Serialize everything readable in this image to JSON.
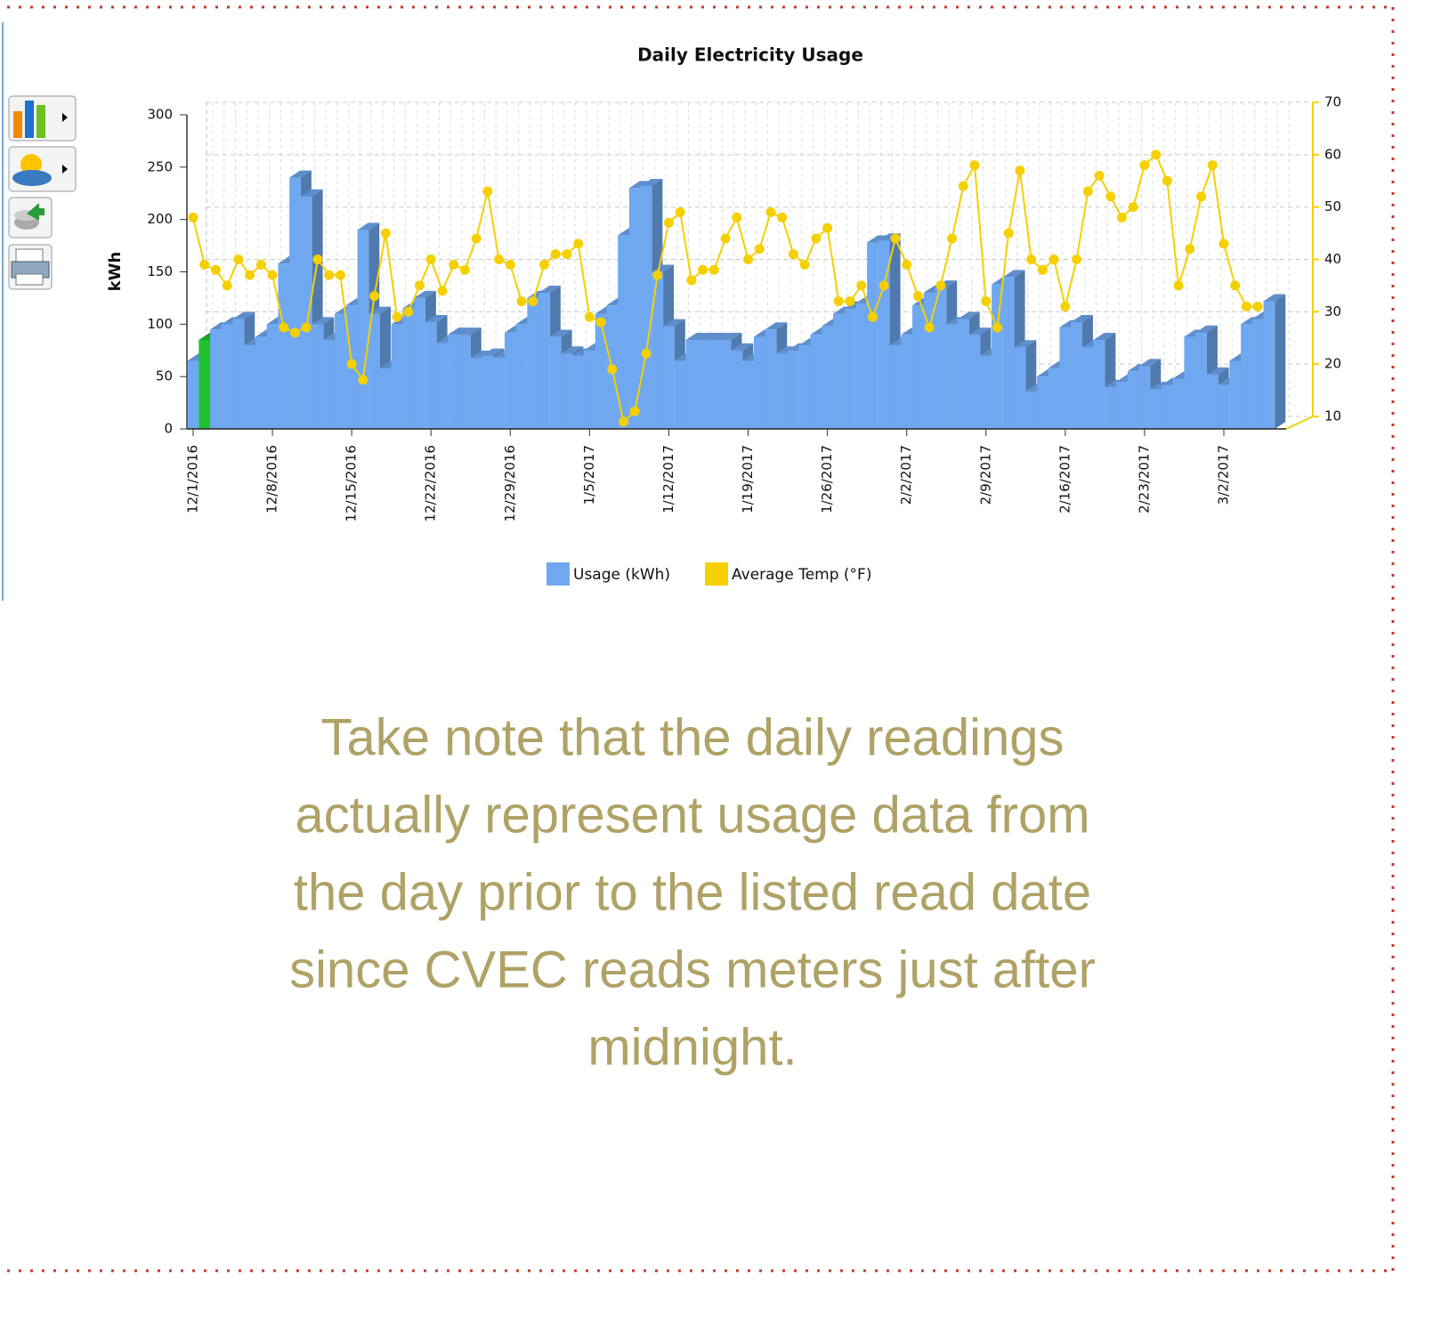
{
  "chart_data": {
    "type": "bar3d_line",
    "title": "Daily Electricity Usage",
    "ylabel": "kWh",
    "categories": [
      "12/1/2016",
      null,
      null,
      null,
      null,
      null,
      null,
      "12/8/2016",
      null,
      null,
      null,
      null,
      null,
      null,
      "12/15/2016",
      null,
      null,
      null,
      null,
      null,
      null,
      "12/22/2016",
      null,
      null,
      null,
      null,
      null,
      null,
      "12/29/2016",
      null,
      null,
      null,
      null,
      null,
      null,
      "1/5/2017",
      null,
      null,
      null,
      null,
      null,
      null,
      "1/12/2017",
      null,
      null,
      null,
      null,
      null,
      null,
      "1/19/2017",
      null,
      null,
      null,
      null,
      null,
      null,
      "1/26/2017",
      null,
      null,
      null,
      null,
      null,
      null,
      "2/2/2017",
      null,
      null,
      null,
      null,
      null,
      null,
      "2/9/2017",
      null,
      null,
      null,
      null,
      null,
      null,
      "2/16/2017",
      null,
      null,
      null,
      null,
      null,
      null,
      "2/23/2017",
      null,
      null,
      null,
      null,
      null,
      null,
      "3/2/2017",
      null,
      null,
      null,
      null
    ],
    "series": [
      {
        "name": "Usage (kWh)",
        "color": "#6fa8f0",
        "point_colors": {
          "1": "#1fc12f"
        },
        "values": [
          65,
          85,
          95,
          100,
          105,
          80,
          88,
          100,
          158,
          240,
          222,
          100,
          85,
          110,
          118,
          190,
          110,
          58,
          100,
          115,
          125,
          102,
          82,
          90,
          90,
          68,
          70,
          68,
          92,
          100,
          125,
          130,
          88,
          72,
          70,
          75,
          110,
          118,
          185,
          230,
          232,
          150,
          98,
          65,
          85,
          85,
          85,
          85,
          75,
          65,
          88,
          95,
          72,
          75,
          80,
          90,
          98,
          110,
          115,
          120,
          178,
          180,
          80,
          90,
          118,
          130,
          135,
          100,
          105,
          90,
          70,
          138,
          145,
          78,
          36,
          50,
          58,
          97,
          102,
          78,
          85,
          40,
          45,
          55,
          60,
          38,
          42,
          48,
          88,
          92,
          52,
          42,
          65,
          100,
          105,
          122
        ]
      },
      {
        "name": "Average Temp (°F)",
        "color": "#f5d000",
        "axis": "y2",
        "values": [
          48,
          39,
          38,
          35,
          40,
          37,
          39,
          37,
          27,
          26,
          27,
          40,
          37,
          37,
          20,
          17,
          33,
          45,
          29,
          30,
          35,
          40,
          34,
          39,
          38,
          44,
          53,
          40,
          39,
          32,
          32,
          39,
          41,
          41,
          43,
          29,
          28,
          19,
          9,
          11,
          22,
          37,
          47,
          49,
          36,
          38,
          38,
          44,
          48,
          40,
          42,
          49,
          48,
          41,
          39,
          44,
          46,
          32,
          32,
          35,
          29,
          35,
          44,
          39,
          33,
          27,
          35,
          44,
          54,
          58,
          32,
          27,
          45,
          57,
          40,
          38,
          40,
          31,
          40,
          53,
          56,
          52,
          48,
          50,
          58,
          60,
          55,
          35,
          42,
          52,
          58,
          43,
          35,
          31,
          31,
          null
        ]
      }
    ],
    "ylim": [
      0,
      300
    ],
    "yticks": [
      0,
      50,
      100,
      150,
      200,
      250,
      300
    ],
    "y2lim": [
      10,
      70
    ],
    "y2ticks": [
      10,
      20,
      30,
      40,
      50,
      60,
      70
    ],
    "grid": true,
    "legend": "bottom",
    "note_lines": [
      "Take note that the daily readings",
      "actually represent usage data from",
      "the day prior to the listed read date",
      "since CVEC reads meters just after",
      "midnight."
    ],
    "note_color": "#b0a266"
  }
}
